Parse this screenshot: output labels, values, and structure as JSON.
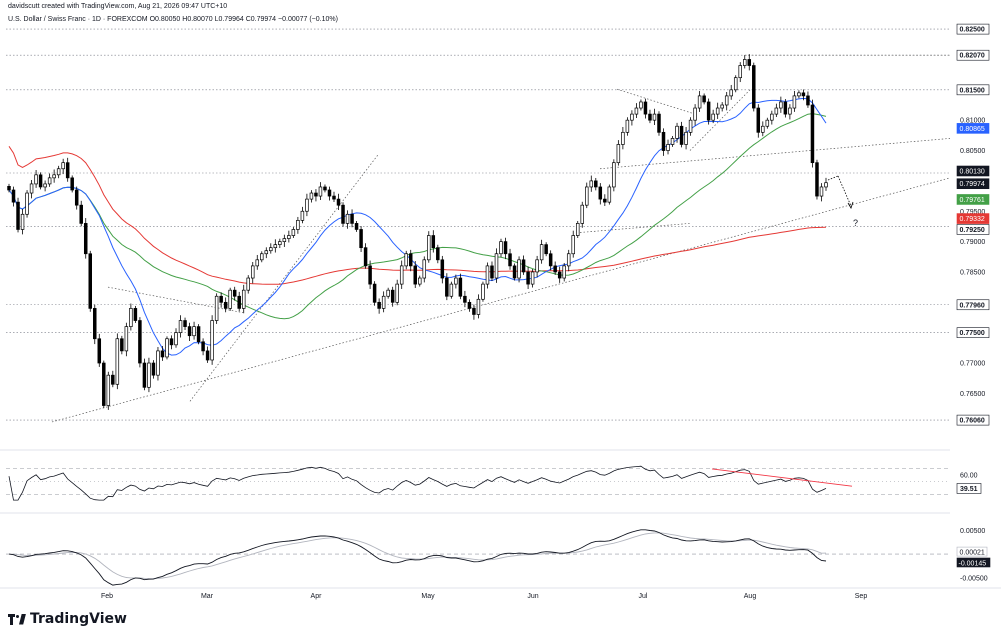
{
  "header": {
    "line1": "davidscutt created with TradingView.com, Aug 21, 2026 09:47 UTC+10",
    "line2": "U.S. Dollar / Swiss Franc · 1D · FOREXCOM  O0.80050  H0.80070  L0.79964  C0.79974  −0.00077 (−0.10%)"
  },
  "logo": {
    "text": "TradingView",
    "icon": "tradingview-logo-icon"
  },
  "colors": {
    "up": "#ffffff",
    "down": "#000000",
    "outline": "#000000",
    "ma_blue": "#2962ff",
    "ma_green": "#43a047",
    "ma_red": "#e53935",
    "rsi_trend": "#f23645"
  },
  "chart_data": [
    {
      "type": "candlestick",
      "title": "U.S. Dollar / Swiss Franc · 1D · FOREXCOM",
      "ylim": [
        0.7565,
        0.8265
      ],
      "x_months": [
        "Feb",
        "Mar",
        "Apr",
        "May",
        "Jun",
        "Jul",
        "Aug",
        "Sep"
      ],
      "y_ticks": [
        "0.82500",
        "0.82070",
        "0.81500",
        "0.81000",
        "0.80865",
        "0.80500",
        "0.80130",
        "0.79974",
        "0.79761",
        "0.79500",
        "0.79332",
        "0.79250",
        "0.79000",
        "0.78500",
        "0.77960",
        "0.77500",
        "0.77000",
        "0.76500",
        "0.76060"
      ],
      "horizontal_levels": [
        0.825,
        0.8207,
        0.815,
        0.8013,
        0.7925,
        0.7796,
        0.775,
        0.7606
      ],
      "price_badges": [
        {
          "value": "0.82500",
          "style": "level"
        },
        {
          "value": "0.82070",
          "style": "level"
        },
        {
          "value": "0.81500",
          "style": "level"
        },
        {
          "value": "0.80865",
          "style": "blue"
        },
        {
          "value": "0.80130",
          "style": "dark"
        },
        {
          "value": "0.79974",
          "style": "dark"
        },
        {
          "value": "0.79761",
          "style": "green"
        },
        {
          "value": "0.79332",
          "style": "red"
        },
        {
          "value": "0.79250",
          "style": "level"
        },
        {
          "value": "0.77960",
          "style": "level"
        },
        {
          "value": "0.77500",
          "style": "level"
        },
        {
          "value": "0.76060",
          "style": "level"
        }
      ],
      "annotation": "?",
      "closes": [
        0.7985,
        0.7965,
        0.792,
        0.7945,
        0.798,
        0.7995,
        0.801,
        0.799,
        0.7995,
        0.8005,
        0.801,
        0.802,
        0.803,
        0.8005,
        0.7985,
        0.796,
        0.793,
        0.788,
        0.779,
        0.774,
        0.77,
        0.763,
        0.768,
        0.7665,
        0.774,
        0.772,
        0.776,
        0.779,
        0.777,
        0.77,
        0.766,
        0.77,
        0.768,
        0.772,
        0.771,
        0.774,
        0.773,
        0.775,
        0.777,
        0.776,
        0.7745,
        0.776,
        0.7735,
        0.772,
        0.7705,
        0.777,
        0.781,
        0.78,
        0.779,
        0.782,
        0.781,
        0.779,
        0.782,
        0.784,
        0.786,
        0.787,
        0.788,
        0.7885,
        0.789,
        0.7895,
        0.79,
        0.7905,
        0.791,
        0.792,
        0.7935,
        0.795,
        0.797,
        0.798,
        0.7975,
        0.799,
        0.7985,
        0.7975,
        0.797,
        0.796,
        0.793,
        0.7945,
        0.793,
        0.792,
        0.789,
        0.786,
        0.783,
        0.78,
        0.779,
        0.781,
        0.782,
        0.78,
        0.783,
        0.786,
        0.788,
        0.786,
        0.783,
        0.784,
        0.787,
        0.791,
        0.789,
        0.787,
        0.784,
        0.781,
        0.783,
        0.784,
        0.781,
        0.78,
        0.779,
        0.778,
        0.7805,
        0.783,
        0.786,
        0.784,
        0.788,
        0.79,
        0.788,
        0.786,
        0.784,
        0.787,
        0.785,
        0.783,
        0.785,
        0.787,
        0.7895,
        0.788,
        0.786,
        0.785,
        0.784,
        0.786,
        0.788,
        0.791,
        0.793,
        0.796,
        0.799,
        0.8,
        0.799,
        0.797,
        0.7965,
        0.799,
        0.803,
        0.806,
        0.808,
        0.81,
        0.811,
        0.812,
        0.813,
        0.811,
        0.81,
        0.811,
        0.808,
        0.805,
        0.806,
        0.807,
        0.809,
        0.806,
        0.808,
        0.81,
        0.812,
        0.814,
        0.813,
        0.81,
        0.811,
        0.812,
        0.8125,
        0.814,
        0.815,
        0.817,
        0.819,
        0.82,
        0.819,
        0.812,
        0.808,
        0.809,
        0.81,
        0.811,
        0.812,
        0.813,
        0.811,
        0.812,
        0.814,
        0.8145,
        0.814,
        0.8125,
        0.803,
        0.7975,
        0.799,
        0.7997
      ]
    },
    {
      "type": "line",
      "title": "",
      "ylabel": "",
      "ylim": [
        10,
        90
      ],
      "y_ticks": [
        "60.00"
      ],
      "current_value": "39.51",
      "reference_levels": [
        70,
        50,
        30
      ]
    },
    {
      "type": "line",
      "title": "",
      "ylim": [
        -0.0065,
        0.0078
      ],
      "y_ticks": [
        "0.00500",
        "0.00021",
        "-0.00145",
        "-0.00500"
      ],
      "current_values": [
        "0.00021",
        "-0.00145"
      ]
    }
  ]
}
